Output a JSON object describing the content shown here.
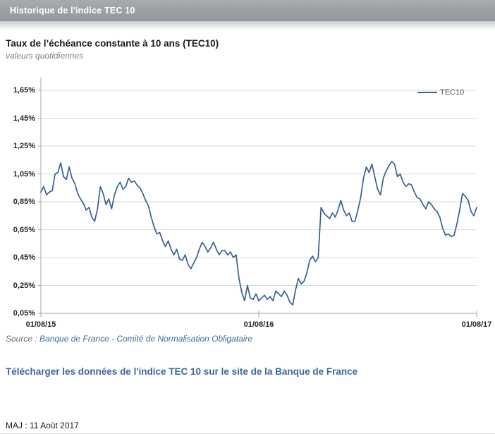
{
  "window": {
    "title": "Historique de l'indice TEC 10"
  },
  "chart": {
    "title": "Taux de l’échéance constante à 10 ans (TEC10)",
    "subtitle": "valeurs quotidiennes"
  },
  "chart_data": {
    "type": "line",
    "title": "Taux de l’échéance constante à 10 ans (TEC10)",
    "subtitle": "valeurs quotidiennes",
    "unit": "%",
    "grid": "horizontal",
    "x_axis": {
      "tick_labels": [
        "01/08/15",
        "01/08/16",
        "01/08/17"
      ],
      "range": [
        "01/08/2015",
        "01/08/2017"
      ],
      "frequency": "daily"
    },
    "y_axis": {
      "tick_labels": [
        "1,65%",
        "1,45%",
        "1,25%",
        "1,05%",
        "0,85%",
        "0,65%",
        "0,45%",
        "0,25%",
        "0,05%"
      ],
      "min": 0.05,
      "max": 1.65,
      "step": 0.2
    },
    "legend": {
      "label": "TEC10",
      "position": "top-right"
    },
    "series": [
      {
        "name": "TEC10",
        "color": "#376092",
        "values": [
          0.92,
          0.96,
          0.9,
          0.92,
          0.93,
          1.05,
          1.06,
          1.13,
          1.03,
          1.01,
          1.1,
          1.02,
          0.98,
          0.91,
          0.87,
          0.84,
          0.79,
          0.81,
          0.74,
          0.71,
          0.8,
          0.96,
          0.91,
          0.83,
          0.87,
          0.8,
          0.9,
          0.96,
          0.99,
          0.94,
          0.96,
          1.02,
          0.99,
          1.0,
          0.97,
          0.95,
          0.91,
          0.86,
          0.82,
          0.74,
          0.67,
          0.62,
          0.63,
          0.57,
          0.53,
          0.57,
          0.51,
          0.47,
          0.51,
          0.44,
          0.43,
          0.47,
          0.4,
          0.37,
          0.41,
          0.45,
          0.51,
          0.56,
          0.53,
          0.49,
          0.52,
          0.56,
          0.51,
          0.47,
          0.5,
          0.5,
          0.47,
          0.49,
          0.45,
          0.47,
          0.3,
          0.2,
          0.14,
          0.25,
          0.16,
          0.15,
          0.19,
          0.14,
          0.16,
          0.18,
          0.15,
          0.17,
          0.14,
          0.21,
          0.19,
          0.17,
          0.21,
          0.18,
          0.13,
          0.11,
          0.22,
          0.3,
          0.26,
          0.28,
          0.34,
          0.43,
          0.46,
          0.42,
          0.45,
          0.81,
          0.77,
          0.75,
          0.73,
          0.77,
          0.74,
          0.79,
          0.86,
          0.79,
          0.75,
          0.77,
          0.71,
          0.71,
          0.79,
          0.88,
          1.02,
          1.1,
          1.06,
          1.12,
          1.03,
          0.94,
          0.9,
          1.02,
          1.07,
          1.11,
          1.14,
          1.12,
          1.03,
          1.05,
          0.99,
          0.96,
          0.98,
          0.97,
          0.92,
          0.88,
          0.87,
          0.83,
          0.8,
          0.85,
          0.83,
          0.8,
          0.78,
          0.74,
          0.66,
          0.61,
          0.62,
          0.6,
          0.61,
          0.69,
          0.79,
          0.91,
          0.89,
          0.86,
          0.78,
          0.75,
          0.81
        ]
      }
    ]
  },
  "source": {
    "prefix": "Source : ",
    "link_text": "Banque de France - Comité de Normalisation Obligataire"
  },
  "download": {
    "label": "Télécharger les données de l'indice TEC 10 sur le site de la Banque de France"
  },
  "footer": {
    "updated": "MAJ : 11 Août 2017"
  },
  "colors": {
    "series_line": "#376092",
    "link": "#3a679b",
    "header_bar": "#989da2",
    "gridline": "#d9d9d9",
    "axis": "#a6a6a6"
  }
}
